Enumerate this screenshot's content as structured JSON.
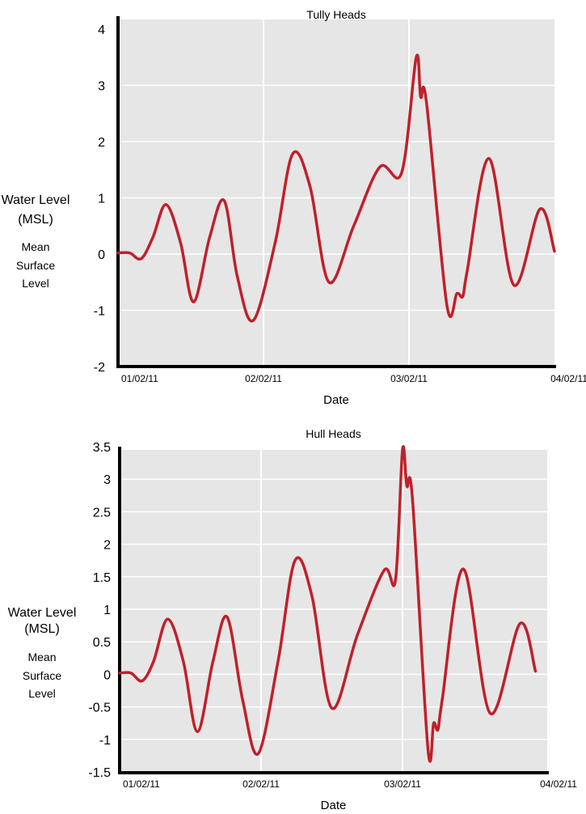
{
  "chart_data": [
    {
      "type": "line",
      "title": "Tully Heads",
      "xlabel": "Date",
      "ylabel": "Water Level (MSL)",
      "ylabel_lines": [
        "Water Level",
        "(MSL)"
      ],
      "ynote_lines": [
        "Mean",
        "Surface",
        "Level"
      ],
      "x_ticks": [
        "01/02/11",
        "02/02/11",
        "03/02/11",
        "04/02/11"
      ],
      "y_ticks": [
        "4",
        "3",
        "2",
        "1",
        "0",
        "-1",
        "-2"
      ],
      "ylim": [
        -2,
        4
      ],
      "xlim": [
        0,
        3
      ],
      "grid": true,
      "colors": {
        "line": "#c0202a",
        "plot_bg": "#e6e6e6",
        "grid": "#ffffff",
        "axis": "#000000"
      },
      "series": [
        {
          "x": [
            0,
            0.08,
            0.16,
            0.24,
            0.33,
            0.43,
            0.52,
            0.63,
            0.73,
            0.82,
            0.93,
            1.08,
            1.2,
            1.32,
            1.45,
            1.62,
            1.8,
            1.95,
            2.05,
            2.08,
            2.12,
            2.26,
            2.33,
            2.37,
            2.4,
            2.55,
            2.72,
            2.9,
            3.0
          ],
          "y": [
            0.02,
            0.02,
            -0.08,
            0.3,
            0.88,
            0.2,
            -0.85,
            0.3,
            0.95,
            -0.4,
            -1.18,
            0.2,
            1.78,
            1.2,
            -0.5,
            0.5,
            1.55,
            1.45,
            3.5,
            2.8,
            2.7,
            -0.9,
            -0.7,
            -0.75,
            -0.3,
            1.7,
            -0.55,
            0.8,
            0.05
          ]
        }
      ]
    },
    {
      "type": "line",
      "title": "Hull Heads",
      "xlabel": "Date",
      "ylabel": "Water Level (MSL)",
      "ylabel_lines": [
        "Water Level",
        "(MSL)"
      ],
      "ynote_lines": [
        "Mean",
        "Surface",
        "Level"
      ],
      "x_ticks": [
        "01/02/11",
        "02/02/11",
        "03/02/11",
        "04/02/11"
      ],
      "y_ticks": [
        "3.5",
        "3",
        "2.5",
        "2",
        "1.5",
        "1",
        "0.5",
        "0",
        "-0.5",
        "-1",
        "-1.5"
      ],
      "ylim": [
        -1.5,
        3.5
      ],
      "xlim": [
        0,
        3
      ],
      "grid": true,
      "colors": {
        "line": "#c0202a",
        "plot_bg": "#e6e6e6",
        "grid": "#ffffff",
        "axis": "#000000"
      },
      "series": [
        {
          "x": [
            0,
            0.08,
            0.16,
            0.24,
            0.34,
            0.45,
            0.55,
            0.66,
            0.76,
            0.87,
            0.98,
            1.12,
            1.24,
            1.36,
            1.5,
            1.68,
            1.87,
            1.95,
            2.0,
            2.03,
            2.07,
            2.18,
            2.22,
            2.25,
            2.28,
            2.43,
            2.62,
            2.83,
            2.94
          ],
          "y": [
            0.02,
            0.02,
            -0.1,
            0.2,
            0.85,
            0.2,
            -0.88,
            0.2,
            0.88,
            -0.4,
            -1.22,
            0.2,
            1.75,
            1.2,
            -0.52,
            0.6,
            1.6,
            1.45,
            3.45,
            2.9,
            2.7,
            -1.15,
            -0.75,
            -0.85,
            -0.4,
            1.62,
            -0.6,
            0.78,
            0.05
          ]
        }
      ]
    }
  ]
}
